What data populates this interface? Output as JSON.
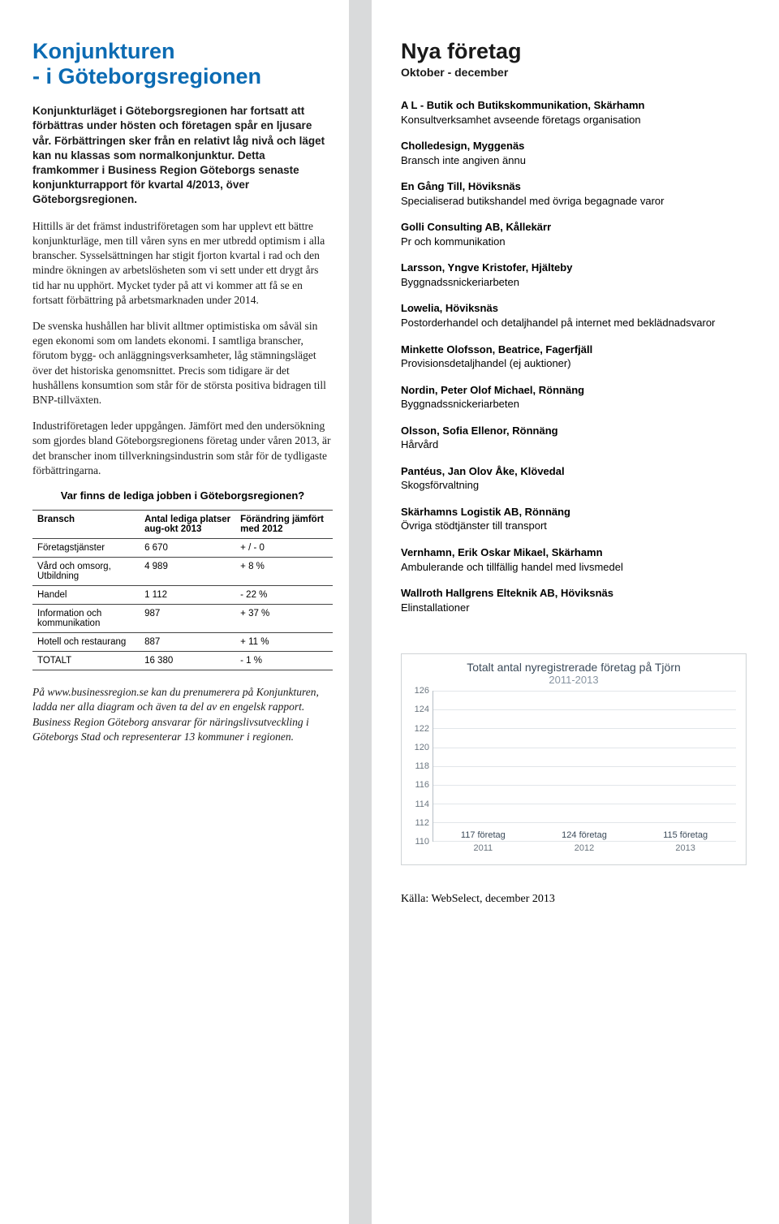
{
  "left": {
    "title": "Konjunkturen\n- i Göteborgsregionen",
    "lead": "Konjunkturläget i Göteborgsregionen har fortsatt att förbättras under hösten och företagen spår en ljusare vår. Förbättringen sker från en relativt låg nivå och läget kan nu klassas som normalkonjunktur. Detta framkommer i Business Region Göteborgs senaste konjunkturrapport för kvartal 4/2013, över Göteborgsregionen.",
    "p1": "Hittills är det främst industriföretagen som har upplevt ett bättre konjunkturläge, men till våren syns en mer utbredd optimism i alla branscher. Sysselsättningen har stigit fjorton kvartal i rad och den mindre ökningen av arbetslösheten som vi sett under ett drygt års tid har nu upphört. Mycket tyder på att vi kommer att få se en fortsatt förbättring på arbetsmarknaden under 2014.",
    "p2": "De svenska hushållen har blivit alltmer optimistiska om såväl sin egen ekonomi som om landets ekonomi. I samtliga branscher, förutom bygg- och anläggningsverksamheter, låg stämningsläget över det historiska genomsnittet. Precis som tidigare är det hushållens konsumtion som står för de största positiva bidragen till BNP-tillväxten.",
    "p3": "Industriföretagen leder uppgången. Jämfört med den undersökning som gjordes bland Göteborgsregionens företag under våren 2013, är det branscher inom tillverkningsindustrin som står för de tydligaste förbättringarna.",
    "table_title": "Var finns de lediga jobben i Göteborgsregionen?",
    "table": {
      "col1": "Bransch",
      "col2": "Antal lediga platser aug-okt 2013",
      "col3": "Förändring jämfört med 2012",
      "rows": [
        [
          "Företagstjänster",
          "6 670",
          "+ / - 0"
        ],
        [
          "Vård och omsorg, Utbildning",
          "4 989",
          "+ 8 %"
        ],
        [
          "Handel",
          "1 112",
          "- 22 %"
        ],
        [
          "Information och kommunikation",
          "987",
          "+ 37 %"
        ],
        [
          "Hotell och restaurang",
          "887",
          "+ 11 %"
        ],
        [
          "TOTALT",
          "16 380",
          "- 1 %"
        ]
      ]
    },
    "footer": "På www.businessregion.se kan du prenumerera på Konjunkturen, ladda ner alla diagram och även ta del av en engelsk rapport. Business Region Göteborg ansvarar för näringslivsutveckling i Göteborgs Stad och representerar 13 kommuner i regionen."
  },
  "right": {
    "title": "Nya företag",
    "subtitle": "Oktober - december",
    "companies": [
      {
        "name": "A L - Butik och Butikskommunikation, Skärhamn",
        "desc": "Konsultverksamhet avseende företags organisation"
      },
      {
        "name": "Cholledesign, Myggenäs",
        "desc": "Bransch inte angiven ännu"
      },
      {
        "name": "En Gång Till, Höviksnäs",
        "desc": "Specialiserad butikshandel med övriga begagnade varor"
      },
      {
        "name": "Golli Consulting AB, Kållekärr",
        "desc": "Pr och kommunikation"
      },
      {
        "name": "Larsson, Yngve Kristofer, Hjälteby",
        "desc": "Byggnadssnickeriarbeten"
      },
      {
        "name": "Lowelia, Höviksnäs",
        "desc": "Postorderhandel och detaljhandel på internet med beklädnadsvaror"
      },
      {
        "name": "Minkette Olofsson, Beatrice, Fagerfjäll",
        "desc": "Provisionsdetaljhandel (ej auktioner)"
      },
      {
        "name": "Nordin, Peter Olof Michael, Rönnäng",
        "desc": "Byggnadssnickeriarbeten"
      },
      {
        "name": "Olsson, Sofia Ellenor, Rönnäng",
        "desc": "Hårvård"
      },
      {
        "name": "Pantéus, Jan Olov Åke, Klövedal",
        "desc": "Skogsförvaltning"
      },
      {
        "name": "Skärhamns Logistik AB, Rönnäng",
        "desc": "Övriga stödtjänster till transport"
      },
      {
        "name": "Vernhamn, Erik Oskar Mikael, Skärhamn",
        "desc": "Ambulerande och tillfällig handel med livsmedel"
      },
      {
        "name": "Wallroth Hallgrens Elteknik AB, Höviksnäs",
        "desc": "Elinstallationer"
      }
    ],
    "chart": {
      "type": "bar",
      "title": "Totalt antal nyregistrerade företag på Tjörn",
      "subtitle": "2011-2013",
      "categories": [
        "2011",
        "2012",
        "2013"
      ],
      "values": [
        117,
        124,
        115
      ],
      "value_labels": [
        "117 företag",
        "124 företag",
        "115 företag"
      ],
      "ylim": [
        110,
        126
      ],
      "ytick_step": 2,
      "bar_color": "#5b9bd5",
      "grid_color": "#e2e6ea",
      "axis_color": "#b7bfc6",
      "label_color": "#6b7680",
      "title_color": "#3b4a59",
      "background_color": "#ffffff"
    },
    "source": "Källa: WebSelect, december 2013"
  }
}
